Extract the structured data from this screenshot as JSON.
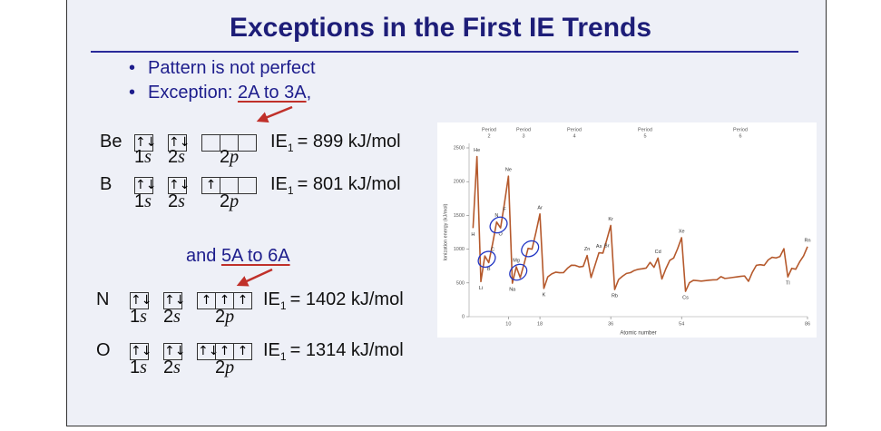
{
  "slide": {
    "title": "Exceptions in the First IE Trends",
    "bullets": [
      {
        "text": "Pattern is not perfect"
      },
      {
        "text": "Exception: ",
        "highlight": "2A to 3A",
        "after": ","
      }
    ],
    "note": {
      "text": "and ",
      "highlight": "5A to 6A"
    },
    "atoms": [
      {
        "symbol": "Be",
        "orbitals": [
          {
            "n": "1",
            "l": "s",
            "boxes": [
              "↑↓"
            ]
          },
          {
            "n": "2",
            "l": "s",
            "boxes": [
              "↑↓"
            ]
          },
          {
            "n": "2",
            "l": "p",
            "boxes": [
              null,
              null,
              null
            ]
          }
        ],
        "ie": {
          "name": "IE",
          "sub": "1",
          "text": "= 899 kJ/mol"
        }
      },
      {
        "symbol": "B",
        "orbitals": [
          {
            "n": "1",
            "l": "s",
            "boxes": [
              "↑↓"
            ]
          },
          {
            "n": "2",
            "l": "s",
            "boxes": [
              "↑↓"
            ]
          },
          {
            "n": "2",
            "l": "p",
            "boxes": [
              "↑",
              null,
              null
            ]
          }
        ],
        "ie": {
          "name": "IE",
          "sub": "1",
          "text": "= 801 kJ/mol"
        }
      },
      {
        "symbol": "N",
        "orbitals": [
          {
            "n": "1",
            "l": "s",
            "boxes": [
              "↑↓"
            ]
          },
          {
            "n": "2",
            "l": "s",
            "boxes": [
              "↑↓"
            ]
          },
          {
            "n": "2",
            "l": "p",
            "boxes": [
              "↑",
              "↑",
              "↑"
            ]
          }
        ],
        "ie": {
          "name": "IE",
          "sub": "1",
          "text": "= 1402 kJ/mol"
        }
      },
      {
        "symbol": "O",
        "orbitals": [
          {
            "n": "1",
            "l": "s",
            "boxes": [
              "↑↓"
            ]
          },
          {
            "n": "2",
            "l": "s",
            "boxes": [
              "↑↓"
            ]
          },
          {
            "n": "2",
            "l": "p",
            "boxes": [
              "↑↓",
              "↑",
              "↑"
            ]
          }
        ],
        "ie": {
          "name": "IE",
          "sub": "1",
          "text": "= 1314 kJ/mol"
        }
      }
    ]
  },
  "chart_data": {
    "type": "line",
    "x_label": "Atomic number",
    "y_label": "Ionization energy (kJ/mol)",
    "periods": [
      {
        "label": "Period",
        "number": 2
      },
      {
        "label": "Period",
        "number": 3
      },
      {
        "label": "Period",
        "number": 4
      },
      {
        "label": "Period",
        "number": 5
      },
      {
        "label": "Period",
        "number": 6
      }
    ],
    "x": [
      1,
      2,
      3,
      4,
      5,
      6,
      7,
      8,
      9,
      10,
      11,
      12,
      13,
      14,
      15,
      16,
      17,
      18,
      19,
      20,
      21,
      22,
      23,
      24,
      25,
      26,
      27,
      28,
      29,
      30,
      31,
      32,
      33,
      34,
      35,
      36,
      37,
      38,
      39,
      40,
      41,
      42,
      43,
      44,
      45,
      46,
      47,
      48,
      49,
      50,
      51,
      52,
      53,
      54,
      55,
      56,
      57,
      58,
      59,
      60,
      61,
      62,
      63,
      64,
      65,
      66,
      67,
      68,
      69,
      70,
      71,
      72,
      73,
      74,
      75,
      76,
      77,
      78,
      79,
      80,
      81,
      82,
      83,
      84,
      85,
      86
    ],
    "series": [
      {
        "color": "#b5592c",
        "values": [
          1312,
          2372,
          520,
          899,
          801,
          1086,
          1402,
          1314,
          1681,
          2081,
          496,
          738,
          578,
          787,
          1012,
          1000,
          1251,
          1521,
          419,
          590,
          633,
          659,
          651,
          653,
          717,
          762,
          760,
          737,
          745,
          906,
          579,
          762,
          947,
          941,
          1140,
          1351,
          403,
          550,
          600,
          640,
          652,
          684,
          702,
          710,
          720,
          804,
          731,
          868,
          558,
          709,
          834,
          869,
          1008,
          1170,
          376,
          503,
          538,
          534,
          527,
          533,
          540,
          545,
          547,
          593,
          566,
          573,
          581,
          589,
          597,
          603,
          524,
          659,
          761,
          770,
          760,
          840,
          880,
          870,
          890,
          1007,
          589,
          716,
          703,
          812,
          899,
          1037
        ]
      }
    ],
    "annotations": [
      {
        "label": "H",
        "x": 1
      },
      {
        "label": "He",
        "x": 2
      },
      {
        "label": "Li",
        "x": 3
      },
      {
        "label": "B",
        "x": 5
      },
      {
        "label": "C",
        "x": 6
      },
      {
        "label": "N",
        "x": 7
      },
      {
        "label": "O",
        "x": 8
      },
      {
        "label": "F",
        "x": 9
      },
      {
        "label": "Ne",
        "x": 10
      },
      {
        "label": "Na",
        "x": 11
      },
      {
        "label": "Mg",
        "x": 12
      },
      {
        "label": "Ar",
        "x": 18
      },
      {
        "label": "K",
        "x": 19
      },
      {
        "label": "Zn",
        "x": 30
      },
      {
        "label": "As",
        "x": 33
      },
      {
        "label": "Br",
        "x": 35
      },
      {
        "label": "Kr",
        "x": 36
      },
      {
        "label": "Rb",
        "x": 37
      },
      {
        "label": "Cd",
        "x": 48
      },
      {
        "label": "Xe",
        "x": 54
      },
      {
        "label": "Cs",
        "x": 55
      },
      {
        "label": "Tl",
        "x": 81
      },
      {
        "label": "Rn",
        "x": 86
      }
    ],
    "xlim": [
      0,
      86
    ],
    "xticks": [
      10,
      18,
      36,
      54,
      86
    ],
    "ylim": [
      0,
      2500
    ],
    "yticks": [
      0,
      500,
      1000,
      1500,
      2000,
      2500
    ]
  }
}
